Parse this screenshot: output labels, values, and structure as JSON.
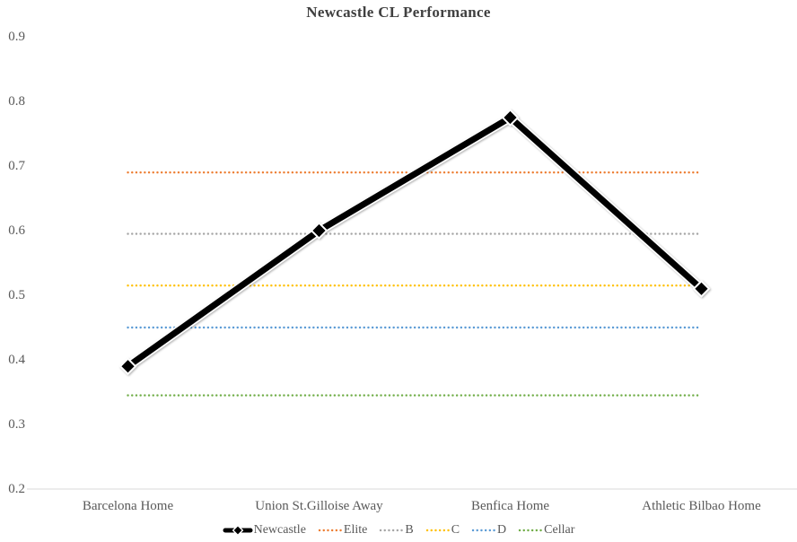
{
  "title": "Newcastle CL Performance",
  "chart_data": {
    "type": "line",
    "title": "Newcastle CL Performance",
    "categories": [
      "Barcelona Home",
      "Union St.Gilloise Away",
      "Benfica Home",
      "Athletic Bilbao Home"
    ],
    "series": [
      {
        "name": "Newcastle",
        "values": [
          0.39,
          0.6,
          0.775,
          0.51
        ],
        "color": "#000000",
        "style": "solid-thick-diamond"
      },
      {
        "name": "Elite",
        "values": [
          0.69,
          0.69,
          0.69,
          0.69
        ],
        "color": "#ED7D31",
        "style": "dotted"
      },
      {
        "name": "B",
        "values": [
          0.595,
          0.595,
          0.595,
          0.595
        ],
        "color": "#A5A5A5",
        "style": "dotted"
      },
      {
        "name": "C",
        "values": [
          0.515,
          0.515,
          0.515,
          0.515
        ],
        "color": "#FFC000",
        "style": "dotted"
      },
      {
        "name": "D",
        "values": [
          0.45,
          0.45,
          0.45,
          0.45
        ],
        "color": "#5B9BD5",
        "style": "dotted"
      },
      {
        "name": "Cellar",
        "values": [
          0.345,
          0.345,
          0.345,
          0.345
        ],
        "color": "#70AD47",
        "style": "dotted"
      }
    ],
    "xlabel": "",
    "ylabel": "",
    "ylim": [
      0.2,
      0.9
    ],
    "ytick_labels": [
      "0.9",
      "0.8",
      "0.7",
      "0.6",
      "0.5",
      "0.4",
      "0.3",
      "0.2"
    ],
    "grid": false,
    "legend_position": "bottom"
  },
  "colors": {
    "background": "#FFFFFF",
    "title_text": "#404040",
    "axis_text": "#595959",
    "axis_line": "#D9D9D9"
  }
}
